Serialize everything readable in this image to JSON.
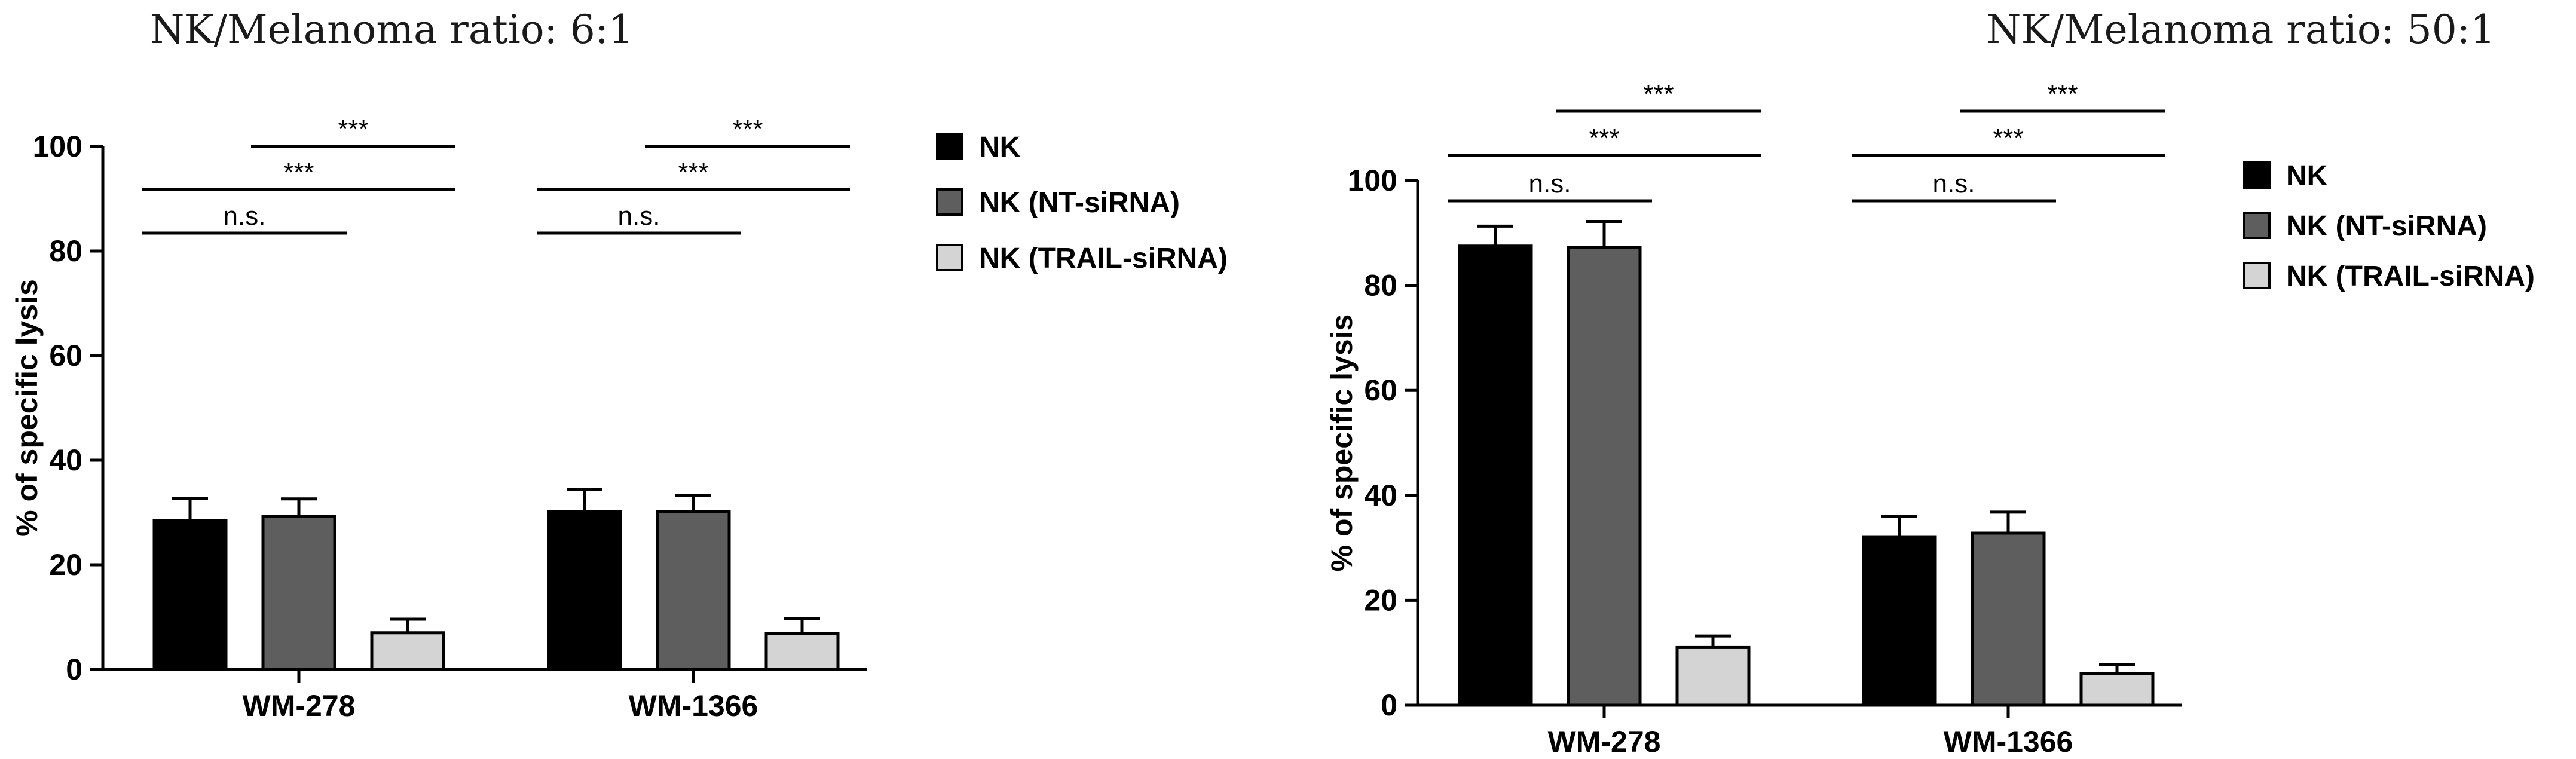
{
  "chart_data": [
    {
      "type": "bar",
      "title": "NK/Melanoma ratio: 6:1",
      "ylabel": "% of specific lysis",
      "xlabel": "",
      "ylim": [
        0,
        100
      ],
      "yticks": [
        0,
        20,
        40,
        60,
        80,
        100
      ],
      "categories": [
        "WM-278",
        "WM-1366"
      ],
      "series": [
        {
          "name": "NK",
          "values": [
            28.5,
            30.2
          ],
          "errors": [
            4.2,
            4.2
          ]
        },
        {
          "name": "NK (NT-siRNA)",
          "values": [
            29.2,
            30.2
          ],
          "errors": [
            3.4,
            3.1
          ]
        },
        {
          "name": "NK (TRAIL-siRNA)",
          "values": [
            7.0,
            6.8
          ],
          "errors": [
            2.6,
            2.9
          ]
        }
      ],
      "significance": [
        {
          "category": 0,
          "from": 0,
          "to": 1,
          "label": "n.s."
        },
        {
          "category": 0,
          "from": 0,
          "to": 2,
          "label": "***"
        },
        {
          "category": 0,
          "from": 1,
          "to": 2,
          "label": "***"
        },
        {
          "category": 1,
          "from": 0,
          "to": 1,
          "label": "n.s."
        },
        {
          "category": 1,
          "from": 0,
          "to": 2,
          "label": "***"
        },
        {
          "category": 1,
          "from": 1,
          "to": 2,
          "label": "***"
        }
      ],
      "legend_position": "right",
      "grid": false
    },
    {
      "type": "bar",
      "title": "NK/Melanoma ratio: 50:1",
      "ylabel": "% of specific lysis",
      "xlabel": "",
      "ylim": [
        0,
        100
      ],
      "yticks": [
        0,
        20,
        40,
        60,
        80,
        100
      ],
      "categories": [
        "WM-278",
        "WM-1366"
      ],
      "series": [
        {
          "name": "NK",
          "values": [
            87.5,
            32.0
          ],
          "errors": [
            3.8,
            4.0
          ]
        },
        {
          "name": "NK (NT-siRNA)",
          "values": [
            87.2,
            32.8
          ],
          "errors": [
            5.0,
            4.0
          ]
        },
        {
          "name": "NK (TRAIL-siRNA)",
          "values": [
            11.0,
            6.0
          ],
          "errors": [
            2.2,
            1.8
          ]
        }
      ],
      "significance": [
        {
          "category": 0,
          "from": 0,
          "to": 1,
          "label": "n.s."
        },
        {
          "category": 0,
          "from": 0,
          "to": 2,
          "label": "***"
        },
        {
          "category": 0,
          "from": 1,
          "to": 2,
          "label": "***"
        },
        {
          "category": 1,
          "from": 0,
          "to": 1,
          "label": "n.s."
        },
        {
          "category": 1,
          "from": 0,
          "to": 2,
          "label": "***"
        },
        {
          "category": 1,
          "from": 1,
          "to": 2,
          "label": "***"
        }
      ],
      "legend_position": "right",
      "grid": false
    }
  ],
  "colors": {
    "NK": "#000000",
    "NK (NT-siRNA)": "#5e5e5e",
    "NK (TRAIL-siRNA)": "#d4d4d4"
  }
}
